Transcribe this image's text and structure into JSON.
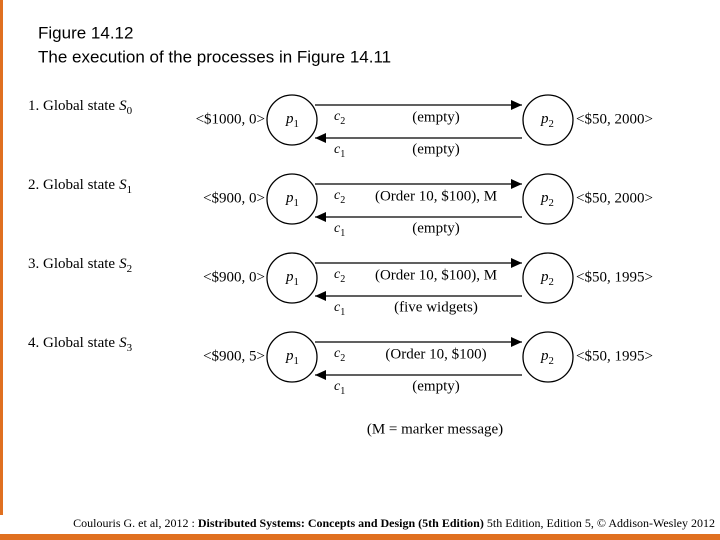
{
  "header": {
    "title": [
      "Figure 14.12",
      "The execution of the processes in Figure 14.11"
    ]
  },
  "processes": [
    {
      "name": "p",
      "index": "1"
    },
    {
      "name": "p",
      "index": "2"
    }
  ],
  "channels": [
    {
      "name": "c",
      "index": "2"
    },
    {
      "name": "c",
      "index": "1"
    }
  ],
  "states": [
    {
      "label": "1. Global state",
      "symbol": "S",
      "index": "0",
      "p1_state": "<$1000, 0>",
      "p2_state": "<$50, 2000>",
      "c2": "(empty)",
      "c1": "(empty)"
    },
    {
      "label": "2. Global state",
      "symbol": "S",
      "index": "1",
      "p1_state": "<$900, 0>",
      "p2_state": "<$50, 2000>",
      "c2": "(Order 10, $100), M",
      "c1": "(empty)"
    },
    {
      "label": "3. Global state",
      "symbol": "S",
      "index": "2",
      "p1_state": "<$900, 0>",
      "p2_state": "<$50, 1995>",
      "c2": "(Order 10, $100), M",
      "c1": "(five widgets)"
    },
    {
      "label": "4. Global state",
      "symbol": "S",
      "index": "3",
      "p1_state": "<$900, 5>",
      "p2_state": "<$50, 1995>",
      "c2": "(Order 10, $100)",
      "c1": "(empty)"
    }
  ],
  "note": "(M = marker message)",
  "footer": {
    "prefix": "Coulouris G. et al, 2012 : ",
    "book": "Distributed Systems: Concepts and Design (5th Edition)",
    "suffix": " 5th Edition, Edition 5, © Addison-Wesley 2012"
  }
}
